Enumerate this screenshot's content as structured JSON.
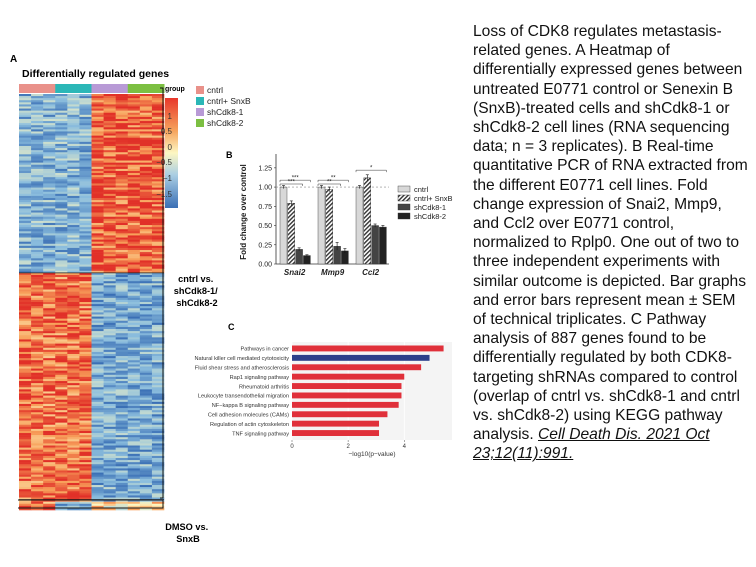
{
  "panel_a": {
    "label": "A",
    "title": "Differentially regulated genes",
    "group_label": "group",
    "legend": [
      {
        "name": "cntrl",
        "color": "#e9918a"
      },
      {
        "name": "cntrl+ SnxB",
        "color": "#2bb7b7"
      },
      {
        "name": "shCdk8-1",
        "color": "#b89ad6"
      },
      {
        "name": "shCdk8-2",
        "color": "#7cbf42"
      }
    ],
    "scale": [
      "1",
      "0.5",
      "0",
      "−0.5",
      "−1",
      "−1.5"
    ],
    "annot1": [
      "cntrl vs.",
      "shCdk8-1/",
      "shCdk8-2"
    ],
    "annot2": [
      "DMSO vs.",
      "SnxB"
    ]
  },
  "panel_b": {
    "label": "B",
    "chart_data": {
      "type": "bar",
      "categories": [
        "Snai2",
        "Mmp9",
        "Ccl2"
      ],
      "series": [
        {
          "name": "cntrl",
          "values": [
            1.0,
            1.0,
            1.0
          ],
          "errors": [
            0.02,
            0.02,
            0.02
          ],
          "color": "#d8d8d8"
        },
        {
          "name": "cntrl+ SnxB",
          "values": [
            0.79,
            0.97,
            1.12
          ],
          "errors": [
            0.03,
            0.03,
            0.04
          ],
          "color": "hatch"
        },
        {
          "name": "shCdk8-1",
          "values": [
            0.19,
            0.23,
            0.5
          ],
          "errors": [
            0.02,
            0.05,
            0.02
          ],
          "color": "#444444"
        },
        {
          "name": "shCdk8-2",
          "values": [
            0.11,
            0.17,
            0.48
          ],
          "errors": [
            0.01,
            0.03,
            0.02
          ],
          "color": "#222222"
        }
      ],
      "significance": [
        "***",
        "***",
        "**",
        "**",
        "*"
      ],
      "ylabel": "Fold change over control",
      "yticks": [
        "0.00",
        "0.25",
        "0.50",
        "0.75",
        "1.00",
        "1.25"
      ],
      "ylim": [
        0,
        1.3
      ]
    }
  },
  "panel_c": {
    "label": "C",
    "chart_data": {
      "type": "bar",
      "orientation": "horizontal",
      "categories": [
        "Pathways in cancer",
        "Natural killer cell mediated cytotoxicity",
        "Fluid shear stress and atherosclerosis",
        "Rap1 signaling pathway",
        "Rheumatoid arthritis",
        "Leukocyte transendothelial migration",
        "NF−kappa B signaling pathway",
        "Cell adhesion molecules (CAMs)",
        "Regulation of actin cytoskeleton",
        "TNF signaling pathway"
      ],
      "values": [
        5.4,
        4.9,
        4.6,
        4.0,
        3.9,
        3.9,
        3.8,
        3.4,
        3.1,
        3.1
      ],
      "colors": [
        "#e0303a",
        "#2c3f8a",
        "#e0303a",
        "#e0303a",
        "#e0303a",
        "#e0303a",
        "#e0303a",
        "#e0303a",
        "#e0303a",
        "#e0303a"
      ],
      "xticks": [
        "0",
        "2",
        "4"
      ],
      "xlabel": "−log10(p−value)",
      "xlim": [
        0,
        5.7
      ]
    }
  },
  "caption": {
    "text": "Loss of CDK8 regulates metastasis-related genes. A Heatmap of differentially expressed genes between untreated E0771 control or Senexin B (SnxB)-treated cells and shCdk8-1 or shCdk8-2 cell lines (RNA sequencing data; n = 3 replicates). B Real-time quantitative PCR of RNA extracted from the different E0771 cell lines. Fold change expression of Snai2, Mmp9, and Ccl2 over E0771 control, normalized to Rplp0. One out of two to three independent experiments with similar outcome is depicted. Bar graphs and error bars represent mean ± SEM of technical triplicates. C Pathway analysis of 887 genes found to be differentially regulated by both CDK8-targeting shRNAs compared to control (overlap of cntrl vs. shCdk8-1 and cntrl vs. shCdk8-2) using KEGG pathway analysis.",
    "citation": "Cell Death Dis. 2021 Oct 23;12(11):991."
  }
}
